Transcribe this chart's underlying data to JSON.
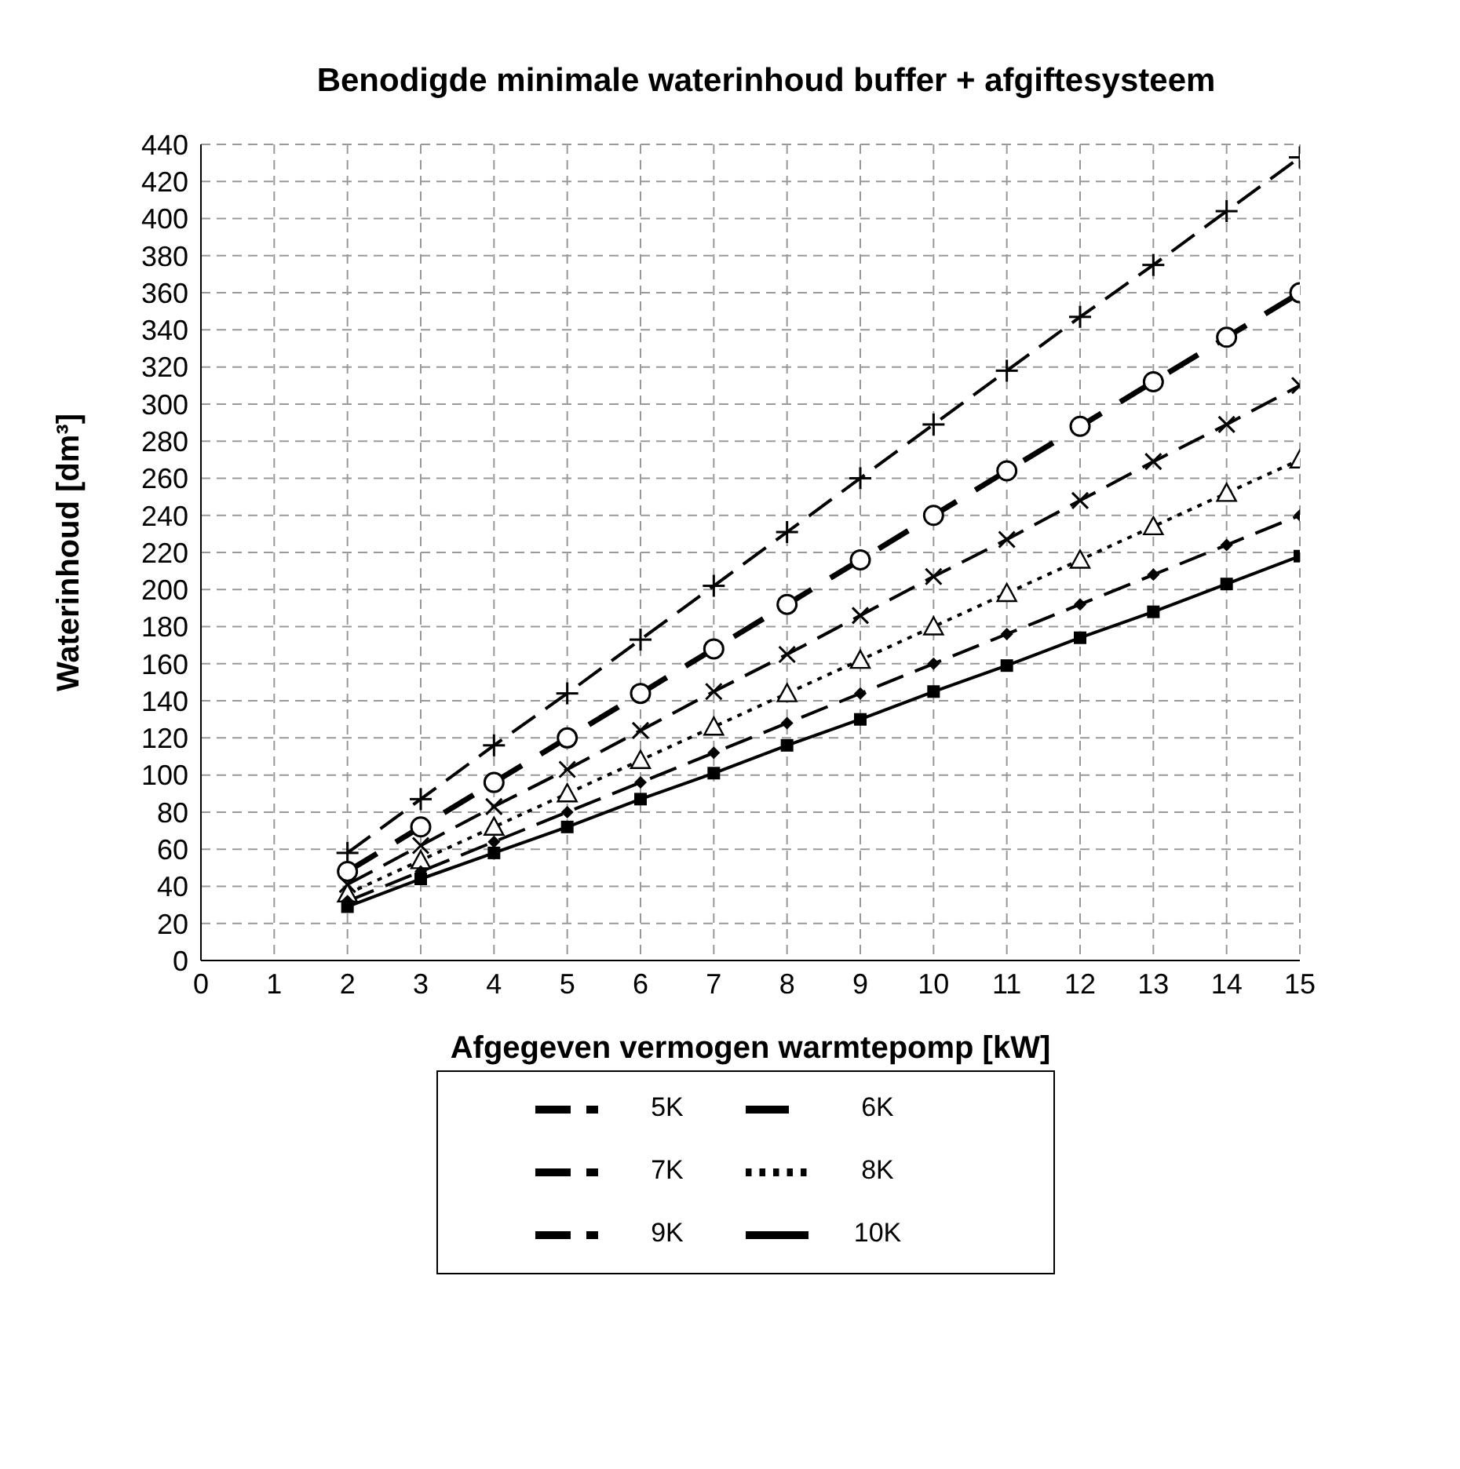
{
  "chart_data": {
    "type": "line",
    "title": "Benodigde minimale waterinhoud buffer + afgiftesysteem",
    "xlabel": "Afgegeven vermogen warmtepomp [kW]",
    "ylabel": "Waterinhoud [dm³]",
    "x": [
      2,
      3,
      4,
      5,
      6,
      7,
      8,
      9,
      10,
      11,
      12,
      13,
      14,
      15
    ],
    "series": [
      {
        "name": "5K",
        "color": "#000000",
        "marker": "plus",
        "line_style": "dashed",
        "values": [
          58,
          87,
          116,
          144,
          173,
          202,
          231,
          260,
          289,
          318,
          347,
          375,
          404,
          433
        ]
      },
      {
        "name": "6K",
        "color": "#000000",
        "marker": "circle",
        "line_style": "dashed",
        "values": [
          48,
          72,
          96,
          120,
          144,
          168,
          192,
          216,
          240,
          264,
          288,
          312,
          336,
          360
        ]
      },
      {
        "name": "7K",
        "color": "#000000",
        "marker": "cross",
        "line_style": "dashed",
        "values": [
          41,
          62,
          83,
          103,
          124,
          145,
          165,
          186,
          207,
          227,
          248,
          269,
          289,
          310
        ]
      },
      {
        "name": "8K",
        "color": "#000000",
        "marker": "triangle",
        "line_style": "dotted",
        "values": [
          36,
          54,
          72,
          90,
          108,
          126,
          144,
          162,
          180,
          198,
          216,
          234,
          252,
          270
        ]
      },
      {
        "name": "9K",
        "color": "#000000",
        "marker": "diamond",
        "line_style": "dashed",
        "values": [
          32,
          48,
          64,
          80,
          96,
          112,
          128,
          144,
          160,
          176,
          192,
          208,
          224,
          240
        ]
      },
      {
        "name": "10K",
        "color": "#000000",
        "marker": "square",
        "line_style": "solid",
        "values": [
          29,
          44,
          58,
          72,
          87,
          101,
          116,
          130,
          145,
          159,
          174,
          188,
          203,
          218
        ]
      }
    ],
    "xlim": [
      0,
      15
    ],
    "xticks": [
      0,
      1,
      2,
      3,
      4,
      5,
      6,
      7,
      8,
      9,
      10,
      11,
      12,
      13,
      14,
      15
    ],
    "ylim": [
      0,
      440
    ],
    "yticks": [
      0,
      20,
      40,
      60,
      80,
      100,
      120,
      140,
      160,
      180,
      200,
      220,
      240,
      260,
      280,
      300,
      320,
      340,
      360,
      380,
      400,
      420,
      440
    ],
    "grid": true,
    "legend": "bottom"
  }
}
